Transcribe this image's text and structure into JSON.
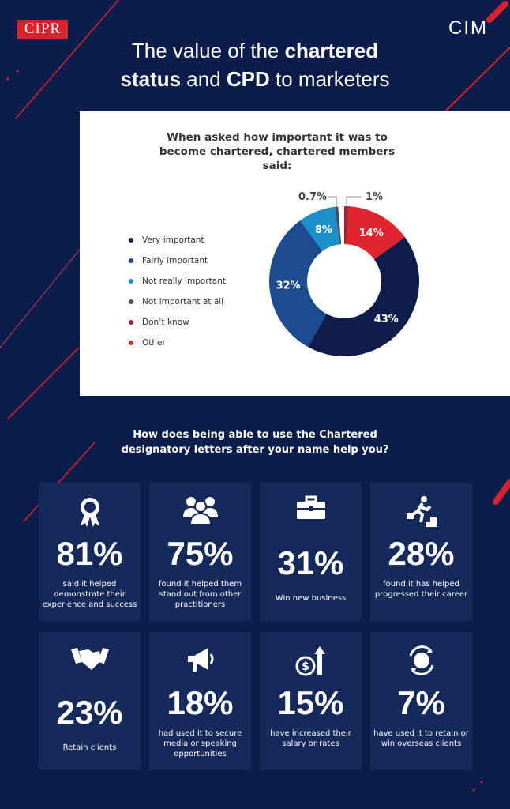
{
  "brand": {
    "left_logo": "CIPR",
    "right_logo": "CIM"
  },
  "title": {
    "part1": "The value of the ",
    "bold1": "chartered",
    "bold2": "status",
    "part2": " and ",
    "bold3": "CPD",
    "part3": " to marketers"
  },
  "chart_data": {
    "type": "pie",
    "title": "When asked how important it was to become chartered, chartered members said:",
    "donut": true,
    "categories": [
      "Don't know",
      "Other",
      "Very important",
      "Fairly important",
      "Not really important",
      "Not important at all"
    ],
    "values": [
      1,
      14,
      43,
      32,
      8,
      0.7
    ],
    "labels": [
      "1%",
      "14%",
      "43%",
      "32%",
      "8%",
      "0.7%"
    ],
    "colors": [
      "#a3262e",
      "#e0252f",
      "#0f1d4a",
      "#1d4b8f",
      "#1a8fc9",
      "#4a4f5e"
    ],
    "legend_order": [
      "Very important",
      "Fairly important",
      "Not really important",
      "Not important at all",
      "Don't know",
      "Other"
    ],
    "legend_position": "left"
  },
  "legend": [
    {
      "label": "Very important",
      "color": "#0f1d4a"
    },
    {
      "label": "Fairly important",
      "color": "#1d4b8f"
    },
    {
      "label": "Not really important",
      "color": "#1a8fc9"
    },
    {
      "label": "Not important at all",
      "color": "#4a4f5e"
    },
    {
      "label": "Don’t know",
      "color": "#a3262e"
    },
    {
      "label": "Other",
      "color": "#e0252f"
    }
  ],
  "question": {
    "line1": "How does being able to use the Chartered",
    "line2": "designatory letters after your name help you?"
  },
  "cards": [
    {
      "icon": "award-ribbon-icon",
      "pct": "81%",
      "text": "said it helped demonstrate their experience and success"
    },
    {
      "icon": "people-group-icon",
      "pct": "75%",
      "text": "found it helped them stand out from other practitioners"
    },
    {
      "icon": "briefcase-icon",
      "pct": "31%",
      "text": "Win new business"
    },
    {
      "icon": "climbing-stairs-icon",
      "pct": "28%",
      "text": "found it has helped progressed their career"
    },
    {
      "icon": "handshake-icon",
      "pct": "23%",
      "text": "Retain clients"
    },
    {
      "icon": "megaphone-icon",
      "pct": "18%",
      "text": "had used it to secure media or speaking opportunities"
    },
    {
      "icon": "salary-increase-icon",
      "pct": "15%",
      "text": "have increased their salary or rates"
    },
    {
      "icon": "globe-refresh-icon",
      "pct": "7%",
      "text": "have used it to retain or win overseas clients"
    }
  ]
}
